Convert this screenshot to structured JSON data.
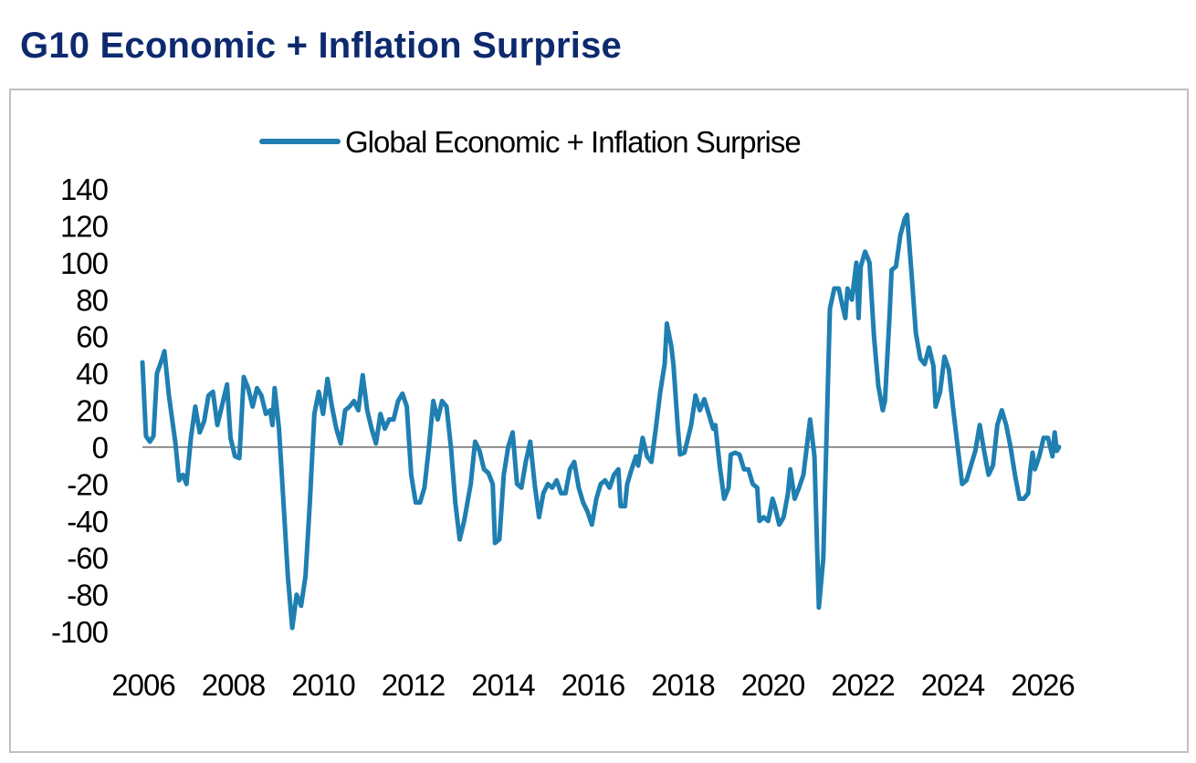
{
  "title": "G10 Economic + Inflation Surprise",
  "colors": {
    "title": "#0e2a6e",
    "series": "#1f7fb1",
    "zero_line": "#8c8c8c",
    "frame": "#bfbfbf"
  },
  "chart_data": {
    "type": "line",
    "title": "G10 Economic + Inflation Surprise",
    "xlabel": "",
    "ylabel": "",
    "ylim": [
      -100,
      140
    ],
    "xlim": [
      2006.0,
      2026.8
    ],
    "yticks": [
      "140",
      "120",
      "100",
      "80",
      "60",
      "40",
      "20",
      "0",
      "-20",
      "-40",
      "-60",
      "-80",
      "-100"
    ],
    "xticks": [
      "2006",
      "2008",
      "2010",
      "2012",
      "2014",
      "2016",
      "2018",
      "2020",
      "2022",
      "2024",
      "2026"
    ],
    "legend": "top-center",
    "grid": false,
    "series": [
      {
        "name": "Global Economic + Inflation Surprise",
        "points": [
          [
            2006.0,
            46
          ],
          [
            2006.08,
            6
          ],
          [
            2006.17,
            3
          ],
          [
            2006.25,
            6
          ],
          [
            2006.33,
            40
          ],
          [
            2006.45,
            48
          ],
          [
            2006.5,
            52
          ],
          [
            2006.6,
            28
          ],
          [
            2006.75,
            2
          ],
          [
            2006.83,
            -18
          ],
          [
            2006.92,
            -15
          ],
          [
            2007.0,
            -20
          ],
          [
            2007.1,
            5
          ],
          [
            2007.2,
            22
          ],
          [
            2007.3,
            8
          ],
          [
            2007.4,
            14
          ],
          [
            2007.5,
            28
          ],
          [
            2007.6,
            30
          ],
          [
            2007.7,
            12
          ],
          [
            2007.8,
            22
          ],
          [
            2007.92,
            34
          ],
          [
            2008.0,
            5
          ],
          [
            2008.1,
            -5
          ],
          [
            2008.2,
            -6
          ],
          [
            2008.3,
            38
          ],
          [
            2008.4,
            32
          ],
          [
            2008.5,
            22
          ],
          [
            2008.6,
            32
          ],
          [
            2008.7,
            28
          ],
          [
            2008.8,
            18
          ],
          [
            2008.9,
            20
          ],
          [
            2008.95,
            12
          ],
          [
            2009.0,
            32
          ],
          [
            2009.1,
            10
          ],
          [
            2009.2,
            -30
          ],
          [
            2009.3,
            -70
          ],
          [
            2009.4,
            -98
          ],
          [
            2009.5,
            -80
          ],
          [
            2009.6,
            -86
          ],
          [
            2009.7,
            -70
          ],
          [
            2009.8,
            -30
          ],
          [
            2009.9,
            18
          ],
          [
            2010.0,
            30
          ],
          [
            2010.1,
            18
          ],
          [
            2010.2,
            37
          ],
          [
            2010.3,
            22
          ],
          [
            2010.4,
            10
          ],
          [
            2010.5,
            2
          ],
          [
            2010.6,
            20
          ],
          [
            2010.7,
            22
          ],
          [
            2010.8,
            25
          ],
          [
            2010.9,
            20
          ],
          [
            2011.0,
            39
          ],
          [
            2011.1,
            20
          ],
          [
            2011.2,
            10
          ],
          [
            2011.3,
            2
          ],
          [
            2011.4,
            18
          ],
          [
            2011.5,
            10
          ],
          [
            2011.6,
            15
          ],
          [
            2011.7,
            15
          ],
          [
            2011.8,
            25
          ],
          [
            2011.9,
            29
          ],
          [
            2012.0,
            22
          ],
          [
            2012.1,
            -15
          ],
          [
            2012.2,
            -30
          ],
          [
            2012.3,
            -30
          ],
          [
            2012.4,
            -22
          ],
          [
            2012.5,
            0
          ],
          [
            2012.6,
            25
          ],
          [
            2012.7,
            15
          ],
          [
            2012.8,
            25
          ],
          [
            2012.9,
            22
          ],
          [
            2013.0,
            0
          ],
          [
            2013.1,
            -30
          ],
          [
            2013.2,
            -50
          ],
          [
            2013.3,
            -40
          ],
          [
            2013.45,
            -20
          ],
          [
            2013.55,
            3
          ],
          [
            2013.65,
            -2
          ],
          [
            2013.75,
            -12
          ],
          [
            2013.85,
            -14
          ],
          [
            2013.95,
            -20
          ],
          [
            2014.0,
            -52
          ],
          [
            2014.1,
            -50
          ],
          [
            2014.2,
            -15
          ],
          [
            2014.3,
            0
          ],
          [
            2014.4,
            8
          ],
          [
            2014.5,
            -20
          ],
          [
            2014.6,
            -22
          ],
          [
            2014.7,
            -8
          ],
          [
            2014.8,
            3
          ],
          [
            2014.9,
            -20
          ],
          [
            2015.0,
            -38
          ],
          [
            2015.1,
            -25
          ],
          [
            2015.2,
            -20
          ],
          [
            2015.3,
            -22
          ],
          [
            2015.4,
            -18
          ],
          [
            2015.5,
            -25
          ],
          [
            2015.6,
            -25
          ],
          [
            2015.7,
            -12
          ],
          [
            2015.8,
            -8
          ],
          [
            2015.9,
            -22
          ],
          [
            2016.0,
            -30
          ],
          [
            2016.1,
            -35
          ],
          [
            2016.2,
            -42
          ],
          [
            2016.3,
            -28
          ],
          [
            2016.4,
            -20
          ],
          [
            2016.5,
            -18
          ],
          [
            2016.6,
            -22
          ],
          [
            2016.7,
            -15
          ],
          [
            2016.8,
            -12
          ],
          [
            2016.85,
            -32
          ],
          [
            2016.95,
            -32
          ],
          [
            2017.0,
            -20
          ],
          [
            2017.1,
            -12
          ],
          [
            2017.2,
            -5
          ],
          [
            2017.25,
            -10
          ],
          [
            2017.35,
            5
          ],
          [
            2017.45,
            -5
          ],
          [
            2017.55,
            -8
          ],
          [
            2017.65,
            10
          ],
          [
            2017.75,
            30
          ],
          [
            2017.85,
            45
          ],
          [
            2017.9,
            67
          ],
          [
            2018.0,
            55
          ],
          [
            2018.05,
            45
          ],
          [
            2018.15,
            10
          ],
          [
            2018.2,
            -4
          ],
          [
            2018.3,
            -3
          ],
          [
            2018.45,
            12
          ],
          [
            2018.55,
            28
          ],
          [
            2018.65,
            20
          ],
          [
            2018.75,
            26
          ],
          [
            2018.85,
            18
          ],
          [
            2018.95,
            10
          ],
          [
            2019.0,
            12
          ],
          [
            2019.1,
            -10
          ],
          [
            2019.2,
            -28
          ],
          [
            2019.3,
            -22
          ],
          [
            2019.35,
            -4
          ],
          [
            2019.45,
            -3
          ],
          [
            2019.55,
            -4
          ],
          [
            2019.65,
            -12
          ],
          [
            2019.75,
            -12
          ],
          [
            2019.85,
            -20
          ],
          [
            2019.95,
            -22
          ],
          [
            2020.0,
            -40
          ],
          [
            2020.1,
            -38
          ],
          [
            2020.2,
            -40
          ],
          [
            2020.3,
            -28
          ],
          [
            2020.35,
            -32
          ],
          [
            2020.45,
            -42
          ],
          [
            2020.55,
            -38
          ],
          [
            2020.65,
            -25
          ],
          [
            2020.7,
            -12
          ],
          [
            2020.8,
            -28
          ],
          [
            2020.9,
            -22
          ],
          [
            2021.0,
            -15
          ],
          [
            2021.15,
            15
          ],
          [
            2021.25,
            -5
          ],
          [
            2021.35,
            -87
          ],
          [
            2021.45,
            -60
          ],
          [
            2021.6,
            75
          ],
          [
            2021.7,
            86
          ],
          [
            2021.8,
            86
          ],
          [
            2021.9,
            75
          ],
          [
            2021.95,
            70
          ],
          [
            2022.0,
            86
          ],
          [
            2022.1,
            80
          ],
          [
            2022.2,
            100
          ],
          [
            2022.25,
            70
          ],
          [
            2022.3,
            98
          ],
          [
            2022.4,
            106
          ],
          [
            2022.5,
            100
          ],
          [
            2022.6,
            60
          ],
          [
            2022.7,
            33
          ],
          [
            2022.8,
            20
          ],
          [
            2022.85,
            25
          ],
          [
            2022.95,
            70
          ],
          [
            2023.0,
            96
          ],
          [
            2023.1,
            98
          ],
          [
            2023.2,
            115
          ],
          [
            2023.3,
            124
          ],
          [
            2023.35,
            126
          ],
          [
            2023.45,
            95
          ],
          [
            2023.55,
            62
          ],
          [
            2023.65,
            48
          ],
          [
            2023.75,
            45
          ],
          [
            2023.85,
            54
          ],
          [
            2023.95,
            44
          ],
          [
            2024.0,
            22
          ],
          [
            2024.1,
            30
          ],
          [
            2024.2,
            49
          ],
          [
            2024.3,
            42
          ],
          [
            2024.4,
            20
          ],
          [
            2024.5,
            0
          ],
          [
            2024.6,
            -20
          ],
          [
            2024.7,
            -18
          ],
          [
            2024.8,
            -10
          ],
          [
            2024.9,
            -2
          ],
          [
            2025.0,
            12
          ],
          [
            2025.1,
            -2
          ],
          [
            2025.2,
            -15
          ],
          [
            2025.3,
            -10
          ],
          [
            2025.4,
            12
          ],
          [
            2025.5,
            20
          ],
          [
            2025.6,
            12
          ],
          [
            2025.7,
            0
          ],
          [
            2025.8,
            -15
          ],
          [
            2025.9,
            -28
          ],
          [
            2026.0,
            -28
          ],
          [
            2026.1,
            -25
          ],
          [
            2026.15,
            -12
          ],
          [
            2026.2,
            -3
          ],
          [
            2026.25,
            -12
          ],
          [
            2026.35,
            -5
          ],
          [
            2026.45,
            5
          ],
          [
            2026.55,
            5
          ],
          [
            2026.65,
            -5
          ],
          [
            2026.7,
            8
          ],
          [
            2026.75,
            -2
          ],
          [
            2026.8,
            0
          ]
        ]
      }
    ]
  }
}
